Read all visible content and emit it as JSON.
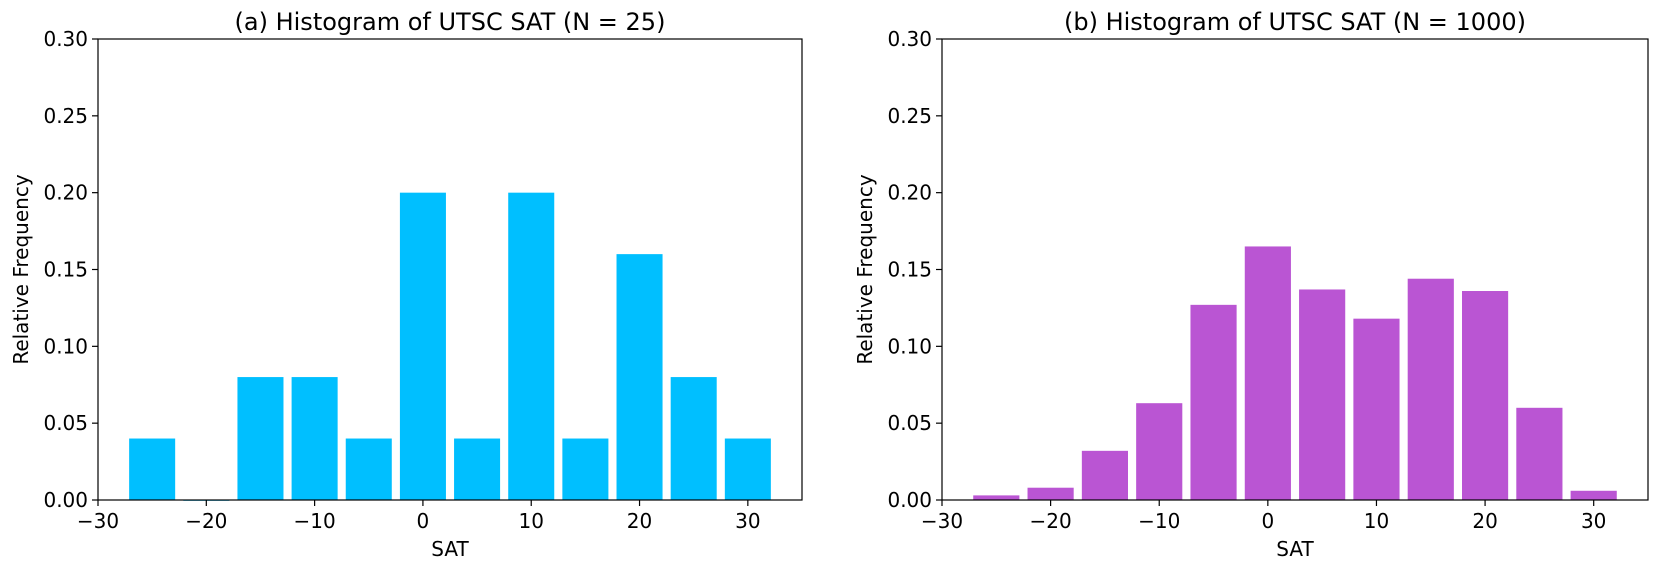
{
  "chart_data": [
    {
      "type": "bar",
      "title": "(a) Histogram of UTSC SAT (N = 25)",
      "xlabel": "SAT",
      "ylabel": "Relative Frequency",
      "xlim": [
        -30,
        35
      ],
      "ylim": [
        0,
        0.3
      ],
      "xticks": [
        -30,
        -20,
        -10,
        0,
        10,
        20,
        30
      ],
      "xtick_labels": [
        "−30",
        "−20",
        "−10",
        "0",
        "10",
        "20",
        "30"
      ],
      "yticks": [
        0,
        0.05,
        0.1,
        0.15,
        0.2,
        0.25,
        0.3
      ],
      "ytick_labels": [
        "0.00",
        "0.05",
        "0.10",
        "0.15",
        "0.20",
        "0.25",
        "0.30"
      ],
      "bar_width": 4.25,
      "color": "#00bfff",
      "x": [
        -25,
        -20,
        -15,
        -10,
        -5,
        0,
        5,
        10,
        15,
        20,
        25,
        30
      ],
      "values": [
        0.04,
        0.0,
        0.08,
        0.08,
        0.04,
        0.2,
        0.04,
        0.2,
        0.04,
        0.16,
        0.08,
        0.04
      ]
    },
    {
      "type": "bar",
      "title": "(b) Histogram of UTSC SAT (N = 1000)",
      "xlabel": "SAT",
      "ylabel": "Relative Frequency",
      "xlim": [
        -30,
        35
      ],
      "ylim": [
        0,
        0.3
      ],
      "xticks": [
        -30,
        -20,
        -10,
        0,
        10,
        20,
        30
      ],
      "xtick_labels": [
        "−30",
        "−20",
        "−10",
        "0",
        "10",
        "20",
        "30"
      ],
      "yticks": [
        0,
        0.05,
        0.1,
        0.15,
        0.2,
        0.25,
        0.3
      ],
      "ytick_labels": [
        "0.00",
        "0.05",
        "0.10",
        "0.15",
        "0.20",
        "0.25",
        "0.30"
      ],
      "bar_width": 4.25,
      "color": "#ba55d3",
      "x": [
        -25,
        -20,
        -15,
        -10,
        -5,
        0,
        5,
        10,
        15,
        20,
        25,
        30
      ],
      "values": [
        0.003,
        0.008,
        0.032,
        0.063,
        0.127,
        0.165,
        0.137,
        0.118,
        0.144,
        0.136,
        0.06,
        0.006
      ]
    }
  ]
}
